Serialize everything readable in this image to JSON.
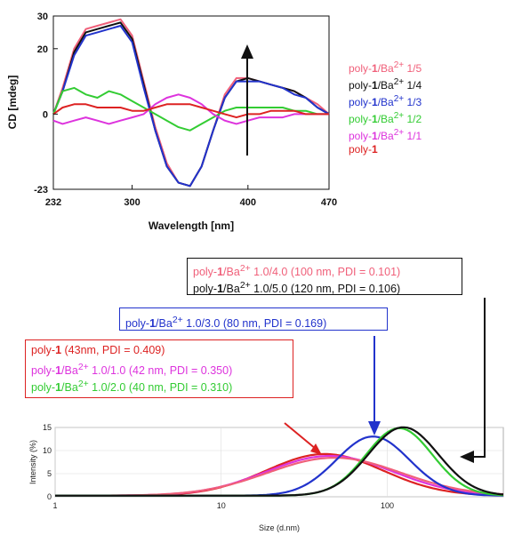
{
  "chart_data": [
    {
      "type": "line",
      "title": "",
      "xlabel": "Wavelength [nm]",
      "ylabel": "CD [mdeg]",
      "xlim": [
        232,
        470
      ],
      "ylim": [
        -23,
        30
      ],
      "x_ticks": [
        "232",
        "300",
        "400",
        "470"
      ],
      "y_ticks": [
        "30",
        "20",
        "0",
        "-23"
      ],
      "legend_position": "right",
      "annotation": "upward arrow at 400 nm",
      "x": [
        232,
        240,
        250,
        260,
        270,
        280,
        290,
        300,
        310,
        320,
        330,
        340,
        350,
        360,
        370,
        380,
        390,
        400,
        410,
        420,
        430,
        440,
        450,
        460,
        470
      ],
      "series": [
        {
          "name": "poly-1/Ba2+ 1/5",
          "legend_html": "poly-<b>1</b>/Ba<sup>2+</sup> 1/5",
          "color": "#f0607a",
          "values": [
            0,
            8,
            20,
            26,
            27,
            28,
            29,
            24,
            10,
            -4,
            -15,
            -21,
            -22,
            -16,
            -5,
            6,
            11,
            11,
            10,
            9,
            8,
            7,
            5,
            3,
            0
          ]
        },
        {
          "name": "poly-1/Ba2+ 1/4",
          "legend_html": "poly-<b>1</b>/Ba<sup>2+</sup> 1/4",
          "color": "#111111",
          "values": [
            0,
            7,
            19,
            25,
            26,
            27,
            28,
            23,
            9,
            -5,
            -16,
            -21,
            -22,
            -16,
            -5,
            5,
            10,
            11,
            10,
            9,
            8,
            7,
            5,
            2,
            0
          ]
        },
        {
          "name": "poly-1/Ba2+ 1/3",
          "legend_html": "poly-<b>1</b>/Ba<sup>2+</sup> 1/3",
          "color": "#2233cc",
          "values": [
            0,
            7,
            18,
            24,
            25,
            26,
            27,
            22,
            8,
            -5,
            -16,
            -21,
            -22,
            -16,
            -5,
            5,
            10,
            10,
            10,
            9,
            8,
            6,
            5,
            2,
            0
          ]
        },
        {
          "name": "poly-1/Ba2+ 1/2",
          "legend_html": "poly-<b>1</b>/Ba<sup>2+</sup> 1/2",
          "color": "#33cc33",
          "values": [
            0,
            7,
            8,
            6,
            5,
            7,
            6,
            4,
            2,
            0,
            -2,
            -4,
            -5,
            -3,
            -1,
            1,
            2,
            2,
            2,
            2,
            2,
            1,
            1,
            0,
            0
          ]
        },
        {
          "name": "poly-1/Ba2+ 1/1",
          "legend_html": "poly-<b>1</b>/Ba<sup>2+</sup> 1/1",
          "color": "#dd33dd",
          "values": [
            -2,
            -3,
            -2,
            -1,
            -2,
            -3,
            -2,
            -1,
            0,
            3,
            5,
            6,
            5,
            3,
            0,
            -2,
            -3,
            -2,
            -1,
            -1,
            -1,
            0,
            0,
            0,
            0
          ]
        },
        {
          "name": "poly-1",
          "legend_html": "poly-<b>1</b>",
          "color": "#dd2222",
          "values": [
            0,
            2,
            3,
            3,
            2,
            2,
            2,
            1,
            1,
            2,
            3,
            3,
            3,
            2,
            1,
            0,
            -1,
            0,
            0,
            1,
            1,
            1,
            0,
            0,
            0
          ]
        }
      ]
    },
    {
      "type": "line",
      "title": "",
      "xlabel": "Size (d.nm)",
      "ylabel": "Intensity (%)",
      "x_scale": "log",
      "xlim": [
        1,
        500
      ],
      "ylim": [
        0,
        15
      ],
      "x_ticks": [
        "1",
        "10",
        "100"
      ],
      "y_ticks": [
        "15",
        "10",
        "5",
        "0"
      ],
      "series": [
        {
          "name": "poly-1",
          "color": "#dd2222",
          "peak_x": 42,
          "peak_y": 9,
          "width": 0.35
        },
        {
          "name": "poly-1/Ba2+ 1.0/1.0",
          "color": "#dd33dd",
          "peak_x": 45,
          "peak_y": 8.6,
          "width": 0.38
        },
        {
          "name": "poly-1/Ba2+ 1.0/2.0",
          "color": "#f0607a",
          "peak_x": 48,
          "peak_y": 8.2,
          "width": 0.4
        },
        {
          "name": "poly-1/Ba2+ 1.0/3.0",
          "color": "#2233cc",
          "peak_x": 82,
          "peak_y": 12.8,
          "width": 0.22
        },
        {
          "name": "poly-1/Ba2+ 1.0/4.0",
          "color": "#33cc33",
          "peak_x": 118,
          "peak_y": 14.6,
          "width": 0.2
        },
        {
          "name": "poly-1/Ba2+ 1.0/5.0",
          "color": "#111111",
          "peak_x": 125,
          "peak_y": 14.8,
          "width": 0.21
        }
      ],
      "annotation_boxes": [
        {
          "border": "#111111",
          "lines": [
            {
              "html": "poly-<b>1</b>/Ba<sup>2+</sup> 1.0/4.0 (100 nm, PDI = 0.101)",
              "color": "#f0607a"
            },
            {
              "html": "poly-<b>1</b>/Ba<sup>2+</sup> 1.0/5.0 (120 nm, PDI = 0.106)",
              "color": "#111111"
            }
          ]
        },
        {
          "border": "#2233cc",
          "lines": [
            {
              "html": "poly-<b>1</b>/Ba<sup>2+</sup> 1.0/3.0 (80 nm, PDI = 0.169)",
              "color": "#2233cc"
            }
          ]
        },
        {
          "border": "#dd2222",
          "lines": [
            {
              "html": "poly-<b>1</b> (43nm, PDI = 0.409)",
              "color": "#dd2222"
            },
            {
              "html": "poly-<b>1</b>/Ba<sup>2+</sup> 1.0/1.0 (42 nm, PDI = 0.350)",
              "color": "#dd33dd"
            },
            {
              "html": "poly-<b>1</b>/Ba<sup>2+</sup> 1.0/2.0 (40 nm, PDI = 0.310)",
              "color": "#33cc33"
            }
          ]
        }
      ]
    }
  ]
}
